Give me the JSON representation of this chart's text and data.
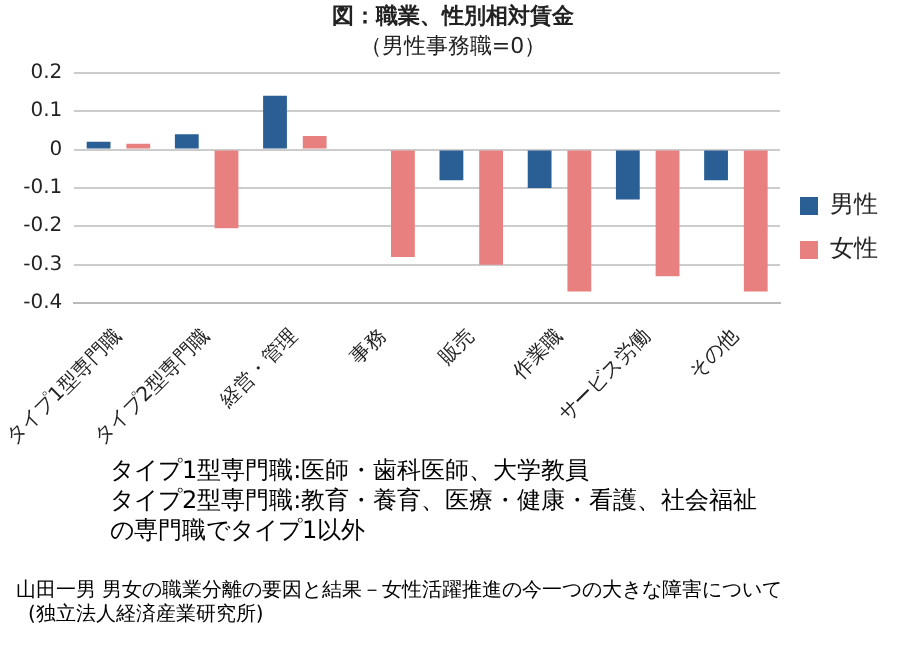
{
  "chart_data": {
    "type": "bar",
    "title": "図：職業、性別相対賃金",
    "subtitle": "（男性事務職=0）",
    "categories": [
      "タイプ1型専門職",
      "タイプ2型専門職",
      "経営・管理",
      "事務",
      "販売",
      "作業職",
      "サービス労働",
      "その他"
    ],
    "series": [
      {
        "name": "男性",
        "color": "#2a5f96",
        "values": [
          0.02,
          0.04,
          0.14,
          0,
          -0.08,
          -0.1,
          -0.13,
          -0.08
        ]
      },
      {
        "name": "女性",
        "color": "#e88080",
        "values": [
          0.015,
          -0.205,
          0.035,
          -0.28,
          -0.3,
          -0.37,
          -0.33,
          -0.37
        ]
      }
    ],
    "ylim": [
      -0.4,
      0.2
    ],
    "yticks": [
      -0.4,
      -0.3,
      -0.2,
      -0.1,
      0,
      0.1,
      0.2
    ],
    "grid": "y",
    "legend": "right",
    "annotations": [
      "タイプ1型専門職:医師・歯科医師、大学教員",
      "タイプ2型専門職:教育・養育、医療・健康・看護、社会福祉の専門職でタイプ1以外",
      "山田一男 男女の職業分離の要因と結果－女性活躍推進の今一つの大きな障害について",
      "(独立法人経済産業研究所)"
    ]
  }
}
